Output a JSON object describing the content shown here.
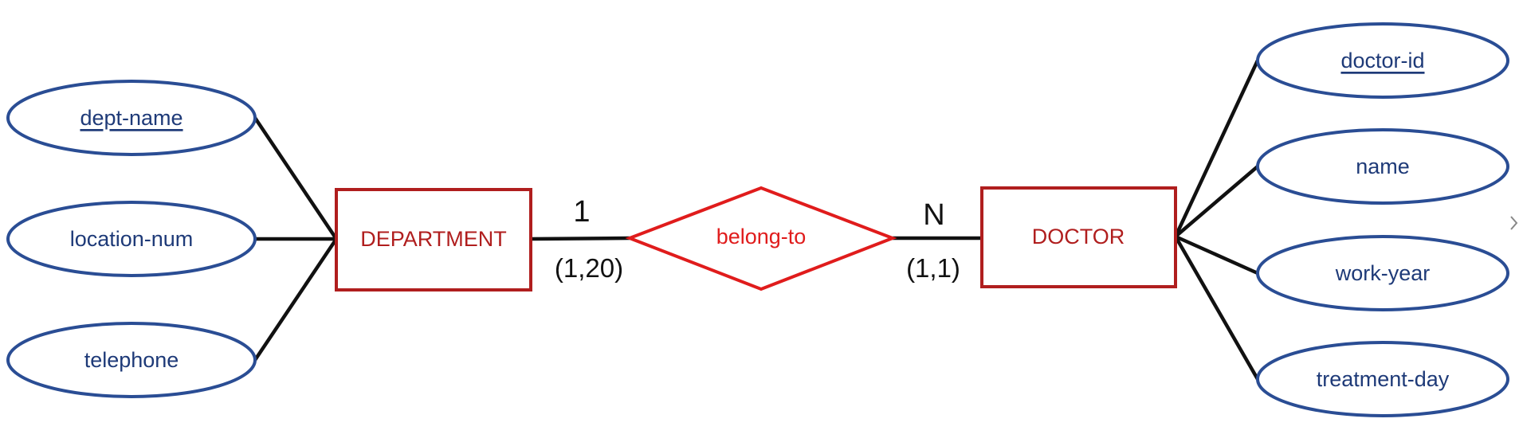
{
  "diagram": {
    "entities": [
      {
        "id": "department",
        "label": "DEPARTMENT"
      },
      {
        "id": "doctor",
        "label": "DOCTOR"
      }
    ],
    "relationship": {
      "label": "belong-to"
    },
    "cardinalities": {
      "department_side": {
        "mark": "1",
        "range": "(1,20)"
      },
      "doctor_side": {
        "mark": "N",
        "range": "(1,1)"
      }
    },
    "department_attributes": [
      {
        "label": "dept-name",
        "key": true
      },
      {
        "label": "location-num",
        "key": false
      },
      {
        "label": "telephone",
        "key": false
      }
    ],
    "doctor_attributes": [
      {
        "label": "doctor-id",
        "key": true
      },
      {
        "label": "name",
        "key": false
      },
      {
        "label": "work-year",
        "key": false
      },
      {
        "label": "treatment-day",
        "key": false
      }
    ],
    "colors": {
      "attribute_stroke": "#2a4d94",
      "attribute_text": "#1e3a78",
      "entity": "#b01e1e",
      "relationship": "#e01c1c",
      "line": "#111111"
    },
    "edge_icon": "chevron-right-icon"
  }
}
